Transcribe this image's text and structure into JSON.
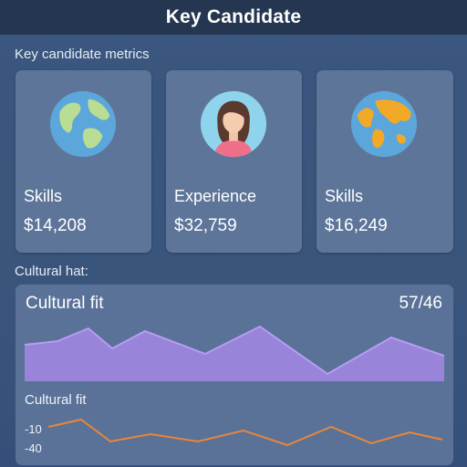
{
  "header": {
    "title": "Key Candidate"
  },
  "metrics_section": {
    "label": "Key candidate metrics"
  },
  "cards": [
    {
      "title": "Skills",
      "value": "$14,208",
      "icon": "globe-icon"
    },
    {
      "title": "Experience",
      "value": "$32,759",
      "icon": "person-avatar-icon"
    },
    {
      "title": "Skills",
      "value": "$16,249",
      "icon": "globe-icon"
    }
  ],
  "cultural_section": {
    "label": "Cultural hat:"
  },
  "panel": {
    "title": "Cultural fit",
    "score": "57/46",
    "subtitle": "Cultural fit",
    "ticks": [
      "-10",
      "-40"
    ]
  },
  "colors": {
    "area_fill": "#9e86e0",
    "area_stroke": "#b79cf2",
    "line_stroke": "#e8873a",
    "card_bg": "#5d7599",
    "header_bg": "#243650"
  }
}
